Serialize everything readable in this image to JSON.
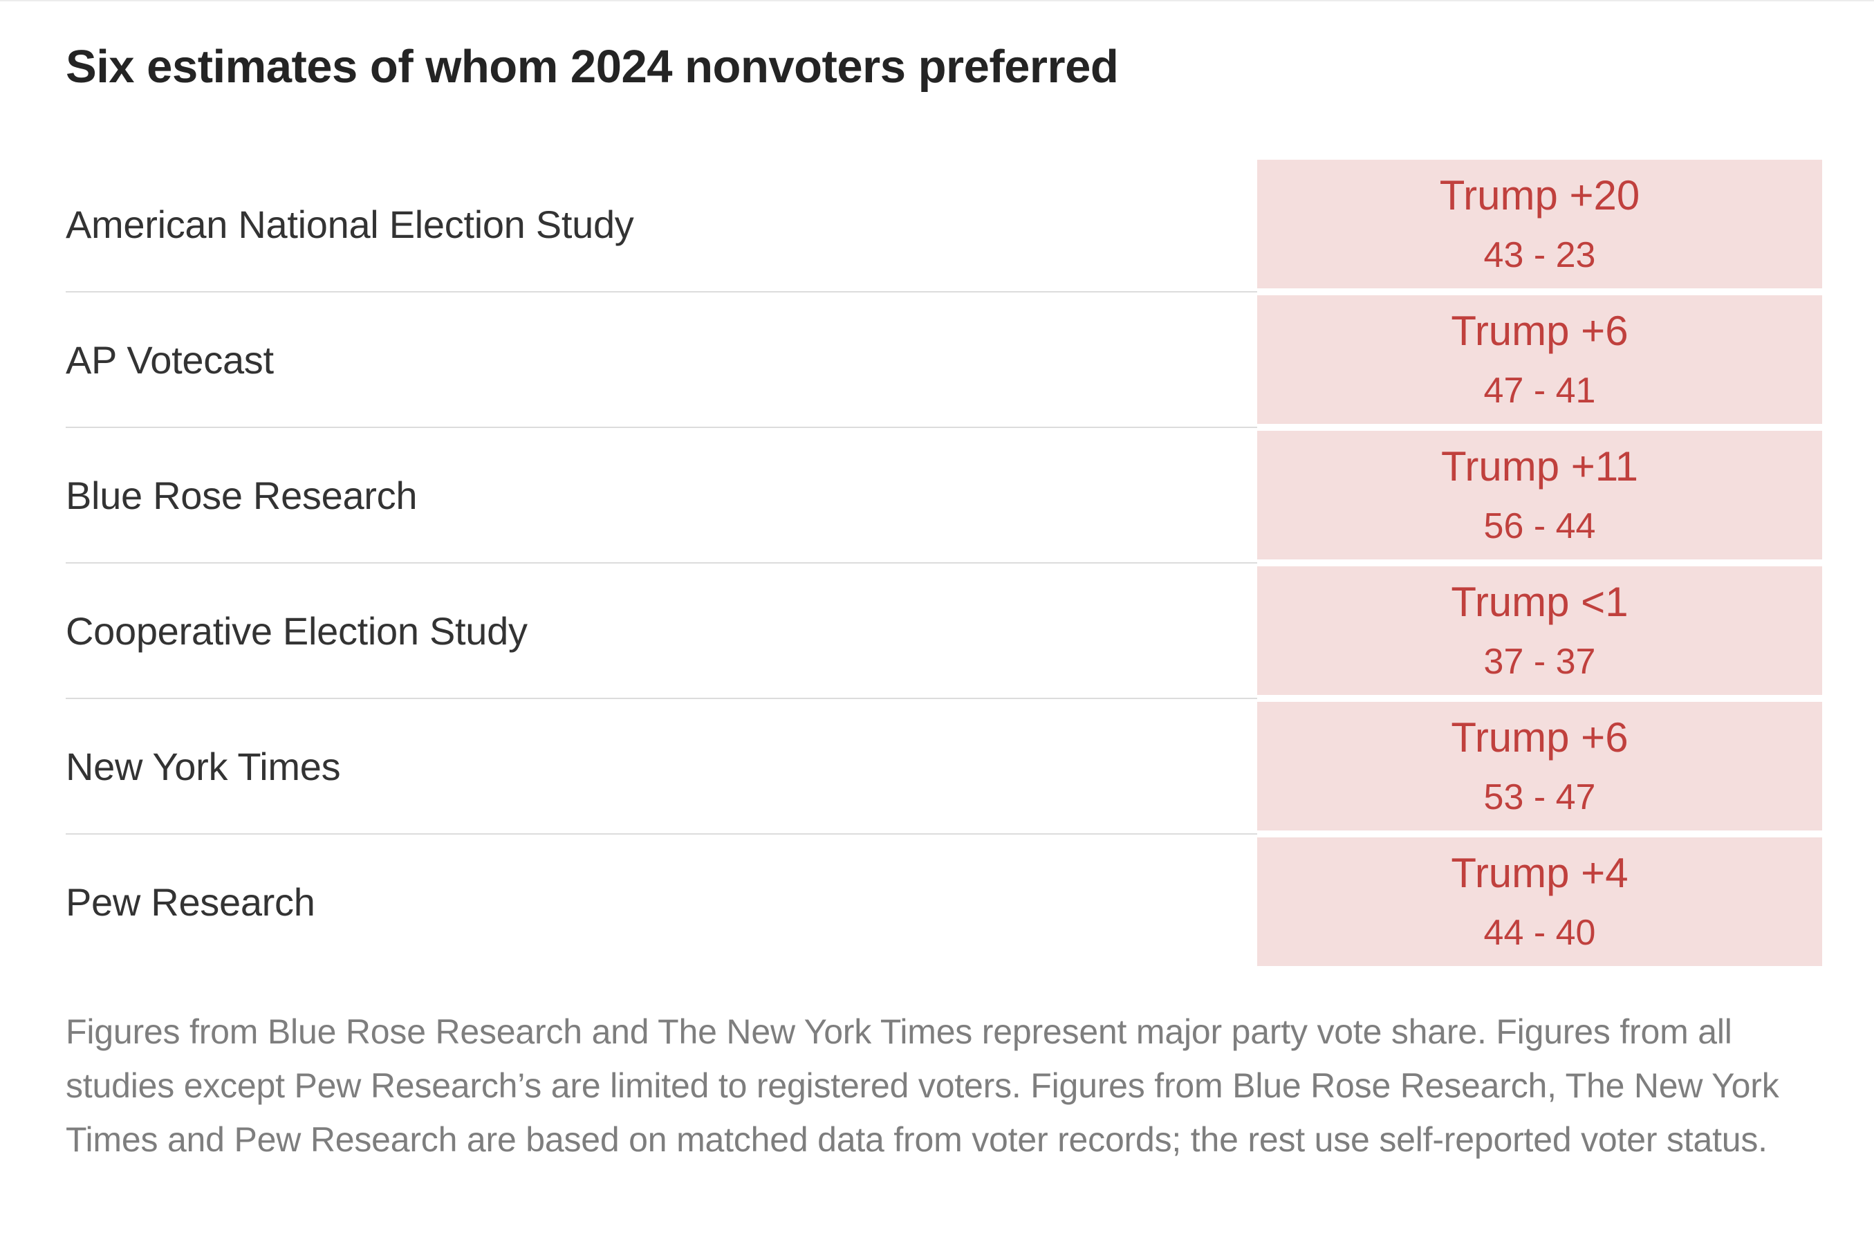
{
  "page": {
    "title": "Six estimates of whom 2024 nonvoters preferred",
    "footnote": "Figures from Blue Rose Research and The New York Times represent major party vote share. Figures from all studies except Pew Research’s are limited to registered voters. Figures from Blue Rose Research, The New York Times and Pew Research are based on matched data from voter records; the rest use self-reported voter status."
  },
  "colors": {
    "result_cell_bg": "#f4dedd",
    "result_text": "#c0403d",
    "title_text": "#242424",
    "label_text": "#333333",
    "footnote_text": "#7e7e7e",
    "divider": "#dcdcdc"
  },
  "chart_data": {
    "type": "table",
    "title": "Six estimates of whom 2024 nonvoters preferred",
    "rows": [
      {
        "study": "American National Election Study",
        "margin_label": "Trump +20",
        "score_label": "43 - 23",
        "values": [
          43,
          23
        ]
      },
      {
        "study": "AP Votecast",
        "margin_label": "Trump +6",
        "score_label": "47 - 41",
        "values": [
          47,
          41
        ]
      },
      {
        "study": "Blue Rose Research",
        "margin_label": "Trump +11",
        "score_label": "56 - 44",
        "values": [
          56,
          44
        ]
      },
      {
        "study": "Cooperative Election Study",
        "margin_label": "Trump <1",
        "score_label": "37 - 37",
        "values": [
          37,
          37
        ]
      },
      {
        "study": "New York Times",
        "margin_label": "Trump +6",
        "score_label": "53 - 47",
        "values": [
          53,
          47
        ]
      },
      {
        "study": "Pew Research",
        "margin_label": "Trump +4",
        "score_label": "44 - 40",
        "values": [
          44,
          40
        ]
      }
    ],
    "footnote": "Figures from Blue Rose Research and The New York Times represent major party vote share. Figures from all studies except Pew Research’s are limited to registered voters. Figures from Blue Rose Research, The New York Times and Pew Research are based on matched data from voter records; the rest use self-reported voter status.",
    "legend_position": "none",
    "grid": "row-dividers"
  }
}
